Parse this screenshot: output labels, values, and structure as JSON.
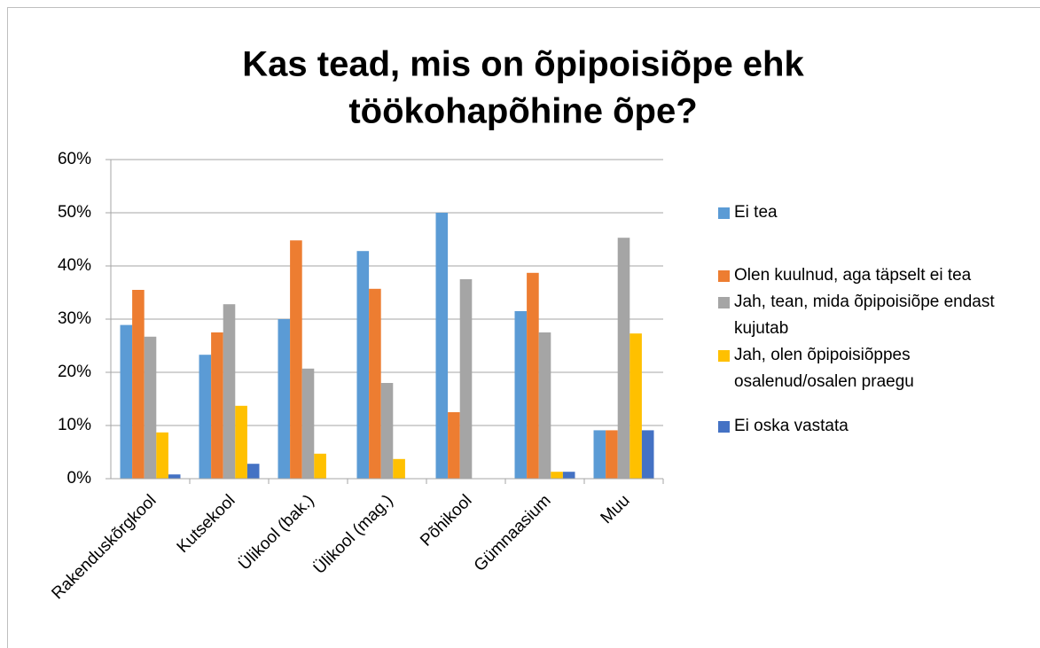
{
  "chart_data": {
    "type": "bar",
    "title": [
      "Kas tead, mis on õpipoisiõpe ehk",
      "töökohapõhine õpe?"
    ],
    "categories": [
      "Rakenduskõrgkool",
      "Kutsekool",
      "Ülikool (bak.)",
      "Ülikool (mag.)",
      "Põhikool",
      "Gümnaasium",
      "Muu"
    ],
    "series": [
      {
        "name": "Ei tea",
        "color": "#5b9bd5",
        "values": [
          28.9,
          23.3,
          30,
          42.8,
          50,
          31.5,
          9.1
        ]
      },
      {
        "name": "Olen kuulnud, aga täpselt ei tea",
        "color": "#ed7d31",
        "values": [
          35.5,
          27.5,
          44.8,
          35.7,
          12.5,
          38.7,
          9.1
        ]
      },
      {
        "name": "Jah, tean, mida õpipoisiõpe endast kujutab",
        "color": "#a5a5a5",
        "values": [
          26.7,
          32.8,
          20.7,
          18,
          37.5,
          27.5,
          45.3
        ]
      },
      {
        "name": "Jah, olen õpipoisiõppes osalenud/osalen praegu",
        "color": "#ffc000",
        "values": [
          8.7,
          13.7,
          4.7,
          3.7,
          0,
          1.3,
          27.3
        ]
      },
      {
        "name": "Ei oska vastata",
        "color": "#4472c4",
        "values": [
          0.8,
          2.8,
          0,
          0,
          0,
          1.3,
          9.1
        ]
      }
    ],
    "ylim": [
      0,
      60
    ],
    "yticks": [
      {
        "value": 0,
        "label": "0%"
      },
      {
        "value": 10,
        "label": "10%"
      },
      {
        "value": 20,
        "label": "20%"
      },
      {
        "value": 30,
        "label": "30%"
      },
      {
        "value": 40,
        "label": "40%"
      },
      {
        "value": 50,
        "label": "50%"
      },
      {
        "value": 60,
        "label": "60%"
      }
    ],
    "grid": true,
    "legend": "right"
  }
}
